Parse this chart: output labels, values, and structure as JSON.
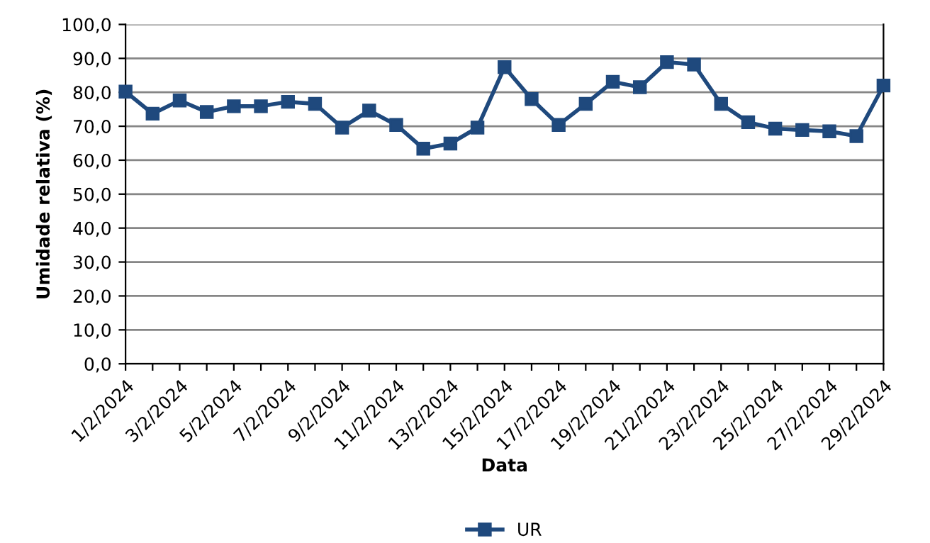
{
  "chart_data": {
    "type": "line",
    "xlabel": "Data",
    "ylabel": "Umidade relativa (%)",
    "categories": [
      "1/2/2024",
      null,
      "3/2/2024",
      null,
      "5/2/2024",
      null,
      "7/2/2024",
      null,
      "9/2/2024",
      null,
      "11/2/2024",
      null,
      "13/2/2024",
      null,
      "15/2/2024",
      null,
      "17/2/2024",
      null,
      "19/2/2024",
      null,
      "21/2/2024",
      null,
      "23/2/2024",
      null,
      "25/2/2024",
      null,
      "27/2/2024",
      null,
      "29/2/2024"
    ],
    "series": [
      {
        "name": "UR",
        "color": "#1f497d",
        "values": [
          80.2,
          73.7,
          77.6,
          74.2,
          75.9,
          75.9,
          77.2,
          76.6,
          69.6,
          74.6,
          70.4,
          63.4,
          64.9,
          69.6,
          87.4,
          78.0,
          70.4,
          76.6,
          83.1,
          81.5,
          88.9,
          88.2,
          76.6,
          71.2,
          69.3,
          68.9,
          68.5,
          67.1,
          82.0
        ]
      }
    ],
    "ylim": [
      0,
      100
    ],
    "yticks": [
      {
        "value": 0,
        "label": "0,0"
      },
      {
        "value": 10,
        "label": "10,0"
      },
      {
        "value": 20,
        "label": "20,0"
      },
      {
        "value": 30,
        "label": "30,0"
      },
      {
        "value": 40,
        "label": "40,0"
      },
      {
        "value": 50,
        "label": "50,0"
      },
      {
        "value": 60,
        "label": "60,0"
      },
      {
        "value": 70,
        "label": "70,0"
      },
      {
        "value": 80,
        "label": "80,0"
      },
      {
        "value": 90,
        "label": "90,0"
      },
      {
        "value": 100,
        "label": "100,0"
      }
    ],
    "grid": "y",
    "legend": "bottom",
    "marker": "square",
    "line_style": "solid"
  }
}
